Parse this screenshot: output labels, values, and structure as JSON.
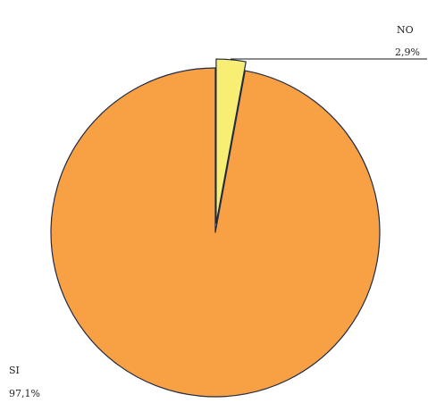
{
  "chart_data": {
    "type": "pie",
    "slices": [
      {
        "label": "NO",
        "value": 2.9,
        "value_label": "2,9%",
        "color": "#F7EE73",
        "exploded": true
      },
      {
        "label": "SI",
        "value": 97.1,
        "value_label": "97,1%",
        "color": "#F7A044",
        "exploded": false
      }
    ],
    "start_angle_deg": 0,
    "direction": "clockwise",
    "outline_color": "#1F2A44"
  }
}
